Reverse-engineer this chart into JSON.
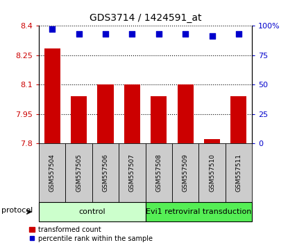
{
  "title": "GDS3714 / 1424591_at",
  "samples": [
    "GSM557504",
    "GSM557505",
    "GSM557506",
    "GSM557507",
    "GSM557508",
    "GSM557509",
    "GSM557510",
    "GSM557511"
  ],
  "transformed_counts": [
    8.285,
    8.04,
    8.1,
    8.1,
    8.04,
    8.1,
    7.82,
    8.04
  ],
  "percentile_ranks": [
    97,
    93,
    93,
    93,
    93,
    93,
    91,
    93
  ],
  "ylim_left": [
    7.8,
    8.4
  ],
  "ylim_right": [
    0,
    100
  ],
  "yticks_left": [
    7.8,
    7.95,
    8.1,
    8.25,
    8.4
  ],
  "ytick_labels_left": [
    "7.8",
    "7.95",
    "8.1",
    "8.25",
    "8.4"
  ],
  "yticks_right": [
    0,
    25,
    50,
    75,
    100
  ],
  "ytick_labels_right": [
    "0",
    "25",
    "50",
    "75",
    "100%"
  ],
  "bar_color": "#cc0000",
  "dot_color": "#0000cc",
  "bar_bottom": 7.8,
  "bar_width": 0.6,
  "control_label": "control",
  "transduction_label": "Evi1 retroviral transduction",
  "control_color": "#ccffcc",
  "transduction_color": "#55ee55",
  "protocol_label": "protocol",
  "legend_bar_label": "transformed count",
  "legend_dot_label": "percentile rank within the sample",
  "bar_label_color": "#cc0000",
  "dot_label_color": "#0000cc",
  "sample_box_color": "#cccccc",
  "dot_size": 28
}
